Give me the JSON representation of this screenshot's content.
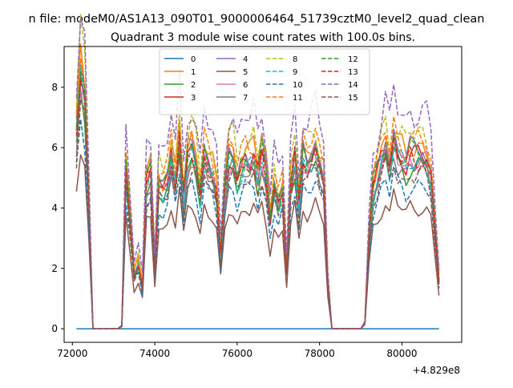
{
  "chart_data": {
    "type": "line",
    "suptitle": "n file: modeM0/AS1A13_090T01_9000006464_51739cztM0_level2_quad_clean",
    "title": "Quadrant 3 module wise count rates with 100.0s bins.",
    "xlabel": "",
    "ylabel": "",
    "x_offset_label": "+4.829e8",
    "xlim": [
      71800,
      81450
    ],
    "ylim": [
      -0.45,
      9.35
    ],
    "x_ticks": [
      72000,
      74000,
      76000,
      78000,
      80000
    ],
    "x_tick_labels": [
      "72000",
      "74000",
      "76000",
      "78000",
      "80000"
    ],
    "y_ticks": [
      0,
      2,
      4,
      6,
      8
    ],
    "y_tick_labels": [
      "0",
      "2",
      "4",
      "6",
      "8"
    ],
    "grid": false,
    "legend": {
      "position": "top-center",
      "columns": 4
    },
    "x_start": 72100,
    "x_step": 100,
    "envelope": [
      6.5,
      8.6,
      7.8,
      4.2,
      0.05,
      0,
      0,
      0,
      0,
      0,
      0,
      0.1,
      5.3,
      3.6,
      1.8,
      2.2,
      1.4,
      4.9,
      5.2,
      2.1,
      4.9,
      4.7,
      4.9,
      5.8,
      4.9,
      6.4,
      4.3,
      5.7,
      6.0,
      5.5,
      4.5,
      5.8,
      5.4,
      5.2,
      4.6,
      2.4,
      4.6,
      5.7,
      5.7,
      5.0,
      5.4,
      5.6,
      5.5,
      5.8,
      5.1,
      5.8,
      5.1,
      3.7,
      4.8,
      4.2,
      4.6,
      2.0,
      4.9,
      5.7,
      4.1,
      5.8,
      5.5,
      5.7,
      6.0,
      5.4,
      5.0,
      1.5,
      0,
      0,
      0,
      0,
      0,
      0,
      0,
      0,
      0.2,
      3.0,
      4.7,
      5.1,
      5.7,
      6.1,
      5.4,
      6.3,
      5.8,
      5.7,
      5.5,
      5.8,
      5.7,
      5.8,
      5.8,
      5.6,
      5.1,
      3.4,
      1.6
    ],
    "dropouts": [
      4,
      5,
      6,
      7,
      8,
      9,
      10,
      62,
      63,
      64,
      65,
      66,
      67,
      68,
      69
    ],
    "series": [
      {
        "name": "0",
        "scale": 0.0,
        "phase": 0.0,
        "dash": "solid",
        "color": "#1f77b4"
      },
      {
        "name": "1",
        "scale": 1.05,
        "phase": 0.5,
        "dash": "solid",
        "color": "#ff7f0e"
      },
      {
        "name": "2",
        "scale": 0.93,
        "phase": 1.3,
        "dash": "solid",
        "color": "#2ca02c"
      },
      {
        "name": "3",
        "scale": 0.99,
        "phase": 2.1,
        "dash": "solid",
        "color": "#d62728"
      },
      {
        "name": "4",
        "scale": 1.03,
        "phase": 2.9,
        "dash": "solid",
        "color": "#9467bd"
      },
      {
        "name": "5",
        "scale": 0.7,
        "phase": 3.7,
        "dash": "solid",
        "color": "#8c564b"
      },
      {
        "name": "6",
        "scale": 0.97,
        "phase": 4.5,
        "dash": "solid",
        "color": "#e377c2"
      },
      {
        "name": "7",
        "scale": 0.94,
        "phase": 5.3,
        "dash": "solid",
        "color": "#7f7f7f"
      },
      {
        "name": "8",
        "scale": 1.12,
        "phase": 6.1,
        "dash": "dashed",
        "color": "#bcbd22"
      },
      {
        "name": "9",
        "scale": 0.96,
        "phase": 6.9,
        "dash": "dashed",
        "color": "#17becf"
      },
      {
        "name": "10",
        "scale": 0.82,
        "phase": 7.7,
        "dash": "dashed",
        "color": "#1f77b4"
      },
      {
        "name": "11",
        "scale": 1.08,
        "phase": 8.5,
        "dash": "dashed",
        "color": "#ff7f0e"
      },
      {
        "name": "12",
        "scale": 1.01,
        "phase": 9.3,
        "dash": "dashed",
        "color": "#2ca02c"
      },
      {
        "name": "13",
        "scale": 0.98,
        "phase": 10.1,
        "dash": "dashed",
        "color": "#d62728"
      },
      {
        "name": "14",
        "scale": 1.25,
        "phase": 10.9,
        "dash": "dashed",
        "color": "#9467bd"
      },
      {
        "name": "15",
        "scale": 0.88,
        "phase": 11.7,
        "dash": "dashed",
        "color": "#8c564b"
      }
    ]
  }
}
